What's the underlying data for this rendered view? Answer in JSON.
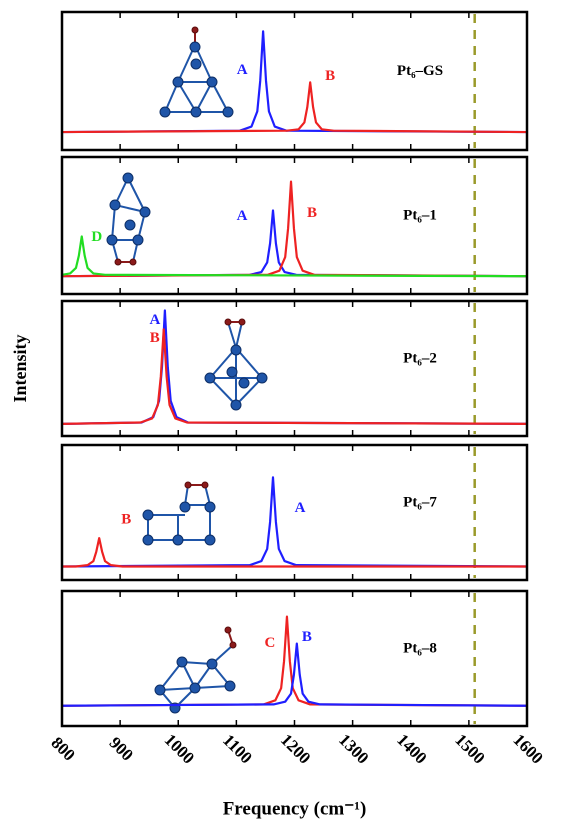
{
  "chart_data": [
    {
      "type": "line",
      "title": "Pt₆–GS",
      "xlim": [
        800,
        1600
      ],
      "ylim": [
        0,
        1
      ],
      "vline": 1510,
      "series": [
        {
          "name": "A",
          "color": "#1f1fff",
          "x": [
            800,
            1106,
            1126,
            1136,
            1141,
            1146,
            1151,
            1156,
            1166,
            1186,
            1600
          ],
          "values": [
            0.13,
            0.14,
            0.17,
            0.28,
            0.5,
            0.86,
            0.5,
            0.28,
            0.17,
            0.14,
            0.13
          ]
        },
        {
          "name": "B",
          "color": "#ee2222",
          "x": [
            800,
            1187,
            1207,
            1217,
            1222,
            1227,
            1232,
            1237,
            1247,
            1267,
            1600
          ],
          "values": [
            0.13,
            0.14,
            0.15,
            0.2,
            0.31,
            0.49,
            0.31,
            0.2,
            0.15,
            0.14,
            0.13
          ]
        }
      ]
    },
    {
      "type": "line",
      "title": "Pt₆–1",
      "xlim": [
        800,
        1600
      ],
      "ylim": [
        0,
        1
      ],
      "vline": 1510,
      "series": [
        {
          "name": "A",
          "color": "#1f1fff",
          "x": [
            800,
            1123,
            1143,
            1153,
            1158,
            1163,
            1168,
            1173,
            1183,
            1203,
            1600
          ],
          "values": [
            0.13,
            0.14,
            0.16,
            0.23,
            0.37,
            0.61,
            0.37,
            0.23,
            0.16,
            0.14,
            0.13
          ]
        },
        {
          "name": "B",
          "color": "#ee2222",
          "x": [
            800,
            1154,
            1174,
            1184,
            1189,
            1194,
            1199,
            1204,
            1214,
            1234,
            1600
          ],
          "values": [
            0.13,
            0.14,
            0.17,
            0.27,
            0.48,
            0.82,
            0.48,
            0.27,
            0.17,
            0.14,
            0.13
          ]
        },
        {
          "name": "D",
          "color": "#22dd22",
          "x": [
            800,
            814,
            824,
            829,
            834,
            839,
            844,
            854,
            874,
            1600
          ],
          "values": [
            0.14,
            0.15,
            0.19,
            0.28,
            0.42,
            0.28,
            0.19,
            0.15,
            0.14,
            0.13
          ]
        }
      ]
    },
    {
      "type": "line",
      "title": "Pt₆–2",
      "ylabel": "Intensity",
      "xlim": [
        800,
        1600
      ],
      "ylim": [
        0,
        1
      ],
      "vline": 1510,
      "series": [
        {
          "name": "A",
          "color": "#1f1fff",
          "x": [
            800,
            937,
            957,
            967,
            972,
            977,
            982,
            987,
            997,
            1017,
            1600
          ],
          "values": [
            0.09,
            0.1,
            0.14,
            0.26,
            0.51,
            0.93,
            0.51,
            0.26,
            0.14,
            0.1,
            0.09
          ]
        },
        {
          "name": "B",
          "color": "#ee2222",
          "x": [
            800,
            935,
            955,
            965,
            970,
            975,
            980,
            985,
            995,
            1015,
            1600
          ],
          "values": [
            0.09,
            0.1,
            0.13,
            0.23,
            0.44,
            0.79,
            0.44,
            0.23,
            0.13,
            0.1,
            0.09
          ]
        }
      ]
    },
    {
      "type": "line",
      "title": "Pt₆–7",
      "xlim": [
        800,
        1600
      ],
      "ylim": [
        0,
        1
      ],
      "vline": 1510,
      "series": [
        {
          "name": "A",
          "color": "#1f1fff",
          "x": [
            800,
            1123,
            1143,
            1153,
            1158,
            1163,
            1168,
            1173,
            1183,
            1203,
            1600
          ],
          "values": [
            0.1,
            0.11,
            0.14,
            0.23,
            0.43,
            0.76,
            0.43,
            0.23,
            0.14,
            0.11,
            0.1
          ]
        },
        {
          "name": "B",
          "color": "#ee2222",
          "x": [
            800,
            824,
            844,
            854,
            859,
            864,
            869,
            874,
            884,
            904,
            1600
          ],
          "values": [
            0.1,
            0.1,
            0.11,
            0.14,
            0.21,
            0.31,
            0.21,
            0.14,
            0.11,
            0.1,
            0.1
          ]
        }
      ]
    },
    {
      "type": "line",
      "title": "Pt₆–8",
      "xlabel": "Frequency (cm⁻¹)",
      "xlim": [
        800,
        1600
      ],
      "ylim": [
        0,
        1
      ],
      "vline": 1510,
      "xticks": [
        800,
        900,
        1000,
        1100,
        1200,
        1300,
        1400,
        1500,
        1600
      ],
      "series": [
        {
          "name": "C",
          "color": "#ee2222",
          "x": [
            800,
            1147,
            1167,
            1177,
            1182,
            1187,
            1192,
            1197,
            1207,
            1227,
            1600
          ],
          "values": [
            0.15,
            0.16,
            0.19,
            0.28,
            0.48,
            0.81,
            0.48,
            0.28,
            0.19,
            0.16,
            0.15
          ]
        },
        {
          "name": "B",
          "color": "#1f1fff",
          "x": [
            800,
            1164,
            1184,
            1194,
            1199,
            1204,
            1209,
            1214,
            1224,
            1244,
            1600
          ],
          "values": [
            0.15,
            0.16,
            0.18,
            0.24,
            0.38,
            0.61,
            0.38,
            0.24,
            0.18,
            0.16,
            0.15
          ]
        }
      ]
    }
  ]
}
